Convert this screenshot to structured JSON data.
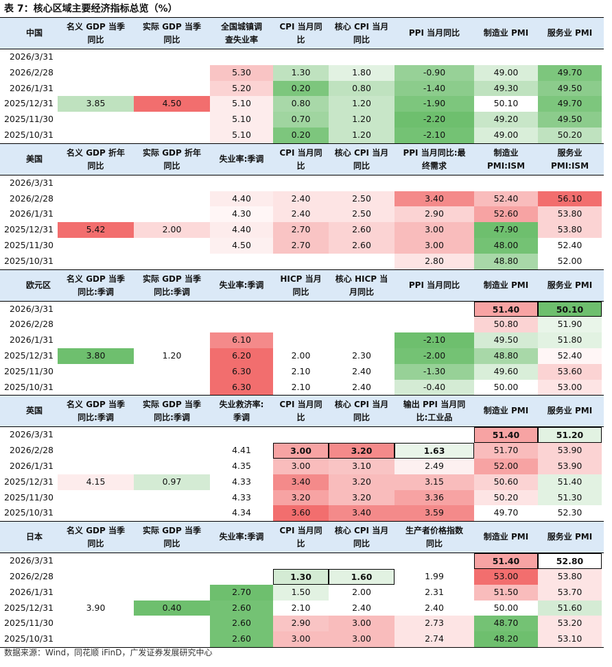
{
  "title": "表 7：核心区域主要经济指标总览（%）",
  "source": "数据来源：Wind，同花顺 iFinD，广发证券发展研究中心",
  "colors": {
    "header_bg": "#dbe9f7",
    "red_strong": "#f26e6e",
    "red_mid": "#f7a3a3",
    "red_light": "#fbd3d3",
    "red_pale": "#fdecec",
    "green_strong": "#6ebf6e",
    "green_mid": "#97d197",
    "green_light": "#bfe2bf",
    "green_pale": "#e2f2e2"
  },
  "sections": [
    {
      "region": "中国",
      "headers": [
        [
          "名义 GDP 当季",
          "同比"
        ],
        [
          "实际 GDP 当季",
          "同比"
        ],
        [
          "全国城镇调",
          "查失业率"
        ],
        [
          "CPI 当月同",
          "比"
        ],
        [
          "核心 CPI 当月",
          "同比"
        ],
        [
          "PPI 当月同比",
          ""
        ],
        [
          "制造业 PMI",
          ""
        ],
        [
          "服务业 PMI",
          ""
        ]
      ],
      "rows": [
        {
          "date": "2026/3/31",
          "values": [
            "",
            "",
            "",
            "",
            "",
            "",
            "",
            ""
          ],
          "colors": [
            "",
            "",
            "",
            "",
            "",
            "",
            "",
            ""
          ]
        },
        {
          "date": "2026/2/28",
          "values": [
            "",
            "",
            "5.30",
            "1.30",
            "1.80",
            "-0.90",
            "49.00",
            "49.70"
          ],
          "colors": [
            "",
            "",
            "#f9c4c4",
            "#bfe2bf",
            "#e2f2e2",
            "#97d197",
            "#d9eed9",
            "#7dc67d"
          ]
        },
        {
          "date": "2026/1/31",
          "values": [
            "",
            "",
            "5.20",
            "0.20",
            "0.80",
            "-1.40",
            "49.30",
            "49.50"
          ],
          "colors": [
            "",
            "",
            "#fbd3d3",
            "#7dc67d",
            "#bfe2bf",
            "#8ccc8c",
            "#bfe2bf",
            "#8ccc8c"
          ]
        },
        {
          "date": "2025/12/31",
          "values": [
            "3.85",
            "4.50",
            "5.10",
            "0.80",
            "1.20",
            "-1.90",
            "50.10",
            "49.70"
          ],
          "colors": [
            "#bfe2bf",
            "#f26e6e",
            "#fdecec",
            "#a8d8a8",
            "#c8e6c8",
            "#7dc67d",
            "#ffffff",
            "#7dc67d"
          ]
        },
        {
          "date": "2025/11/30",
          "values": [
            "",
            "",
            "5.10",
            "0.70",
            "1.20",
            "-2.20",
            "49.20",
            "49.50"
          ],
          "colors": [
            "",
            "",
            "#fdecec",
            "#a0d5a0",
            "#c8e6c8",
            "#6ebf6e",
            "#c8e6c8",
            "#8ccc8c"
          ]
        },
        {
          "date": "2025/10/31",
          "values": [
            "",
            "",
            "5.10",
            "0.20",
            "1.20",
            "-2.10",
            "49.00",
            "50.20"
          ],
          "colors": [
            "",
            "",
            "#fdecec",
            "#7dc67d",
            "#c8e6c8",
            "#74c274",
            "#d9eed9",
            "#bfe2bf"
          ]
        }
      ]
    },
    {
      "region": "美国",
      "headers": [
        [
          "名义 GDP 折年",
          "同比"
        ],
        [
          "实际 GDP 折年",
          "同比"
        ],
        [
          "失业率:季调",
          ""
        ],
        [
          "CPI 当月同",
          "比"
        ],
        [
          "核心 CPI 当月",
          "同比"
        ],
        [
          "PPI 当月同比:最",
          "终需求"
        ],
        [
          "制造业",
          "PMI:ISM"
        ],
        [
          "服务业",
          "PMI:ISM"
        ]
      ],
      "rows": [
        {
          "date": "2026/3/31",
          "values": [
            "",
            "",
            "",
            "",
            "",
            "",
            "",
            ""
          ],
          "colors": [
            "",
            "",
            "",
            "",
            "",
            "",
            "",
            ""
          ]
        },
        {
          "date": "2026/2/28",
          "values": [
            "",
            "",
            "4.40",
            "2.40",
            "2.50",
            "3.40",
            "52.40",
            "56.10"
          ],
          "colors": [
            "",
            "",
            "#fdecec",
            "#fde4e4",
            "#fde4e4",
            "#f48a8a",
            "#f9bcbc",
            "#f26e6e"
          ]
        },
        {
          "date": "2026/1/31",
          "values": [
            "",
            "",
            "4.30",
            "2.40",
            "2.50",
            "2.90",
            "52.60",
            "53.80"
          ],
          "colors": [
            "",
            "",
            "#fff6f6",
            "#fde4e4",
            "#fde4e4",
            "#fbd3d3",
            "#f7a3a3",
            "#fbd3d3"
          ]
        },
        {
          "date": "2025/12/31",
          "values": [
            "5.42",
            "2.00",
            "4.40",
            "2.70",
            "2.60",
            "3.00",
            "47.90",
            "53.80"
          ],
          "colors": [
            "#f26e6e",
            "#fcd9d9",
            "#fdecec",
            "#f9c4c4",
            "#fbd3d3",
            "#f9bcbc",
            "#6ebf6e",
            "#fbd3d3"
          ]
        },
        {
          "date": "2025/11/30",
          "values": [
            "",
            "",
            "4.50",
            "2.70",
            "2.60",
            "3.00",
            "48.00",
            "52.40"
          ],
          "colors": [
            "",
            "",
            "#fdf0f0",
            "#f9c4c4",
            "#fbd3d3",
            "#f9bcbc",
            "#74c274",
            "#ffffff"
          ]
        },
        {
          "date": "2025/10/31",
          "values": [
            "",
            "",
            "",
            "",
            "",
            "2.80",
            "48.80",
            "52.00"
          ],
          "colors": [
            "",
            "",
            "",
            "",
            "",
            "#fde4e4",
            "#a8d8a8",
            "#ffffff"
          ]
        }
      ]
    },
    {
      "region": "欧元区",
      "headers": [
        [
          "名义 GDP 当季",
          "同比:季调"
        ],
        [
          "实际 GDP 当季",
          "同比:季调"
        ],
        [
          "失业率:季调",
          ""
        ],
        [
          "HICP 当月",
          "同比"
        ],
        [
          "核心 HICP 当",
          "月同比"
        ],
        [
          "PPI 当月同比",
          ""
        ],
        [
          "制造业 PMI",
          ""
        ],
        [
          "服务业 PMI",
          ""
        ]
      ],
      "rows": [
        {
          "date": "2026/3/31",
          "values": [
            "",
            "",
            "",
            "",
            "",
            "",
            "51.40",
            "50.10"
          ],
          "colors": [
            "",
            "",
            "",
            "",
            "",
            "",
            "#f7a3a3",
            "#6ebf6e"
          ],
          "boxed": [
            6,
            7
          ]
        },
        {
          "date": "2026/2/28",
          "values": [
            "",
            "",
            "",
            "",
            "",
            "",
            "50.80",
            "51.90"
          ],
          "colors": [
            "",
            "",
            "",
            "",
            "",
            "",
            "#fbd3d3",
            "#e9f5e9"
          ]
        },
        {
          "date": "2026/1/31",
          "values": [
            "",
            "",
            "6.10",
            "",
            "",
            "-2.10",
            "49.50",
            "51.80"
          ],
          "colors": [
            "",
            "",
            "#f48a8a",
            "",
            "",
            "#6ebf6e",
            "#d4ebd4",
            "#e2f2e2"
          ]
        },
        {
          "date": "2025/12/31",
          "values": [
            "3.80",
            "1.20",
            "6.20",
            "2.00",
            "2.30",
            "-2.00",
            "48.80",
            "52.40"
          ],
          "colors": [
            "#6ebf6e",
            "#ffffff",
            "#f26e6e",
            "#ffffff",
            "#ffffff",
            "#74c274",
            "#a8d8a8",
            "#fff6f6"
          ]
        },
        {
          "date": "2025/11/30",
          "values": [
            "",
            "",
            "6.30",
            "2.10",
            "2.40",
            "-1.30",
            "49.60",
            "53.60"
          ],
          "colors": [
            "",
            "",
            "#f26e6e",
            "#ffffff",
            "#ffffff",
            "#97d197",
            "#d9eed9",
            "#fbd3d3"
          ]
        },
        {
          "date": "2025/10/31",
          "values": [
            "",
            "",
            "6.30",
            "2.10",
            "2.40",
            "-0.40",
            "50.00",
            "53.00"
          ],
          "colors": [
            "",
            "",
            "#f26e6e",
            "#ffffff",
            "#ffffff",
            "#d4ebd4",
            "#ffffff",
            "#fde4e4"
          ]
        }
      ]
    },
    {
      "region": "英国",
      "headers": [
        [
          "名义 GDP 当季",
          "同比:季调"
        ],
        [
          "实际 GDP 当季",
          "同比:季调"
        ],
        [
          "失业救济率:",
          "季调"
        ],
        [
          "CPI 当月同",
          "比"
        ],
        [
          "核心 CPI 当月",
          "同比"
        ],
        [
          "输出 PPI 当月同",
          "比:工业品"
        ],
        [
          "制造业 PMI",
          ""
        ],
        [
          "服务业 PMI",
          ""
        ]
      ],
      "rows": [
        {
          "date": "2026/3/31",
          "values": [
            "",
            "",
            "",
            "",
            "",
            "",
            "51.40",
            "51.20"
          ],
          "colors": [
            "",
            "",
            "",
            "",
            "",
            "",
            "#f7a3a3",
            "#e2f2e2"
          ],
          "boxed": [
            6,
            7
          ]
        },
        {
          "date": "2026/2/28",
          "values": [
            "",
            "",
            "4.41",
            "3.00",
            "3.20",
            "1.63",
            "51.70",
            "53.90"
          ],
          "colors": [
            "",
            "",
            "#ffffff",
            "#f7a3a3",
            "#f48a8a",
            "#e9f5e9",
            "#f9bcbc",
            "#fbd3d3"
          ],
          "boxed": [
            3,
            4,
            5
          ]
        },
        {
          "date": "2026/1/31",
          "values": [
            "",
            "",
            "4.35",
            "3.00",
            "3.10",
            "2.49",
            "52.00",
            "53.90"
          ],
          "colors": [
            "",
            "",
            "#ffffff",
            "#f9bcbc",
            "#f9c4c4",
            "#fdf0f0",
            "#f7a3a3",
            "#fbd3d3"
          ]
        },
        {
          "date": "2025/12/31",
          "values": [
            "4.15",
            "0.97",
            "4.33",
            "3.40",
            "3.20",
            "3.15",
            "50.60",
            "51.40"
          ],
          "colors": [
            "#fdecec",
            "#d4ebd4",
            "#ffffff",
            "#f48a8a",
            "#f9bcbc",
            "#f9bcbc",
            "#fbd3d3",
            "#e2f2e2"
          ]
        },
        {
          "date": "2025/11/30",
          "values": [
            "",
            "",
            "4.33",
            "3.20",
            "3.20",
            "3.36",
            "50.20",
            "51.30"
          ],
          "colors": [
            "",
            "",
            "#ffffff",
            "#f7a3a3",
            "#f9bcbc",
            "#f7a3a3",
            "#fde4e4",
            "#e2f2e2"
          ]
        },
        {
          "date": "2025/10/31",
          "values": [
            "",
            "",
            "4.34",
            "3.60",
            "3.40",
            "3.59",
            "49.70",
            "52.30"
          ],
          "colors": [
            "",
            "",
            "#ffffff",
            "#f26e6e",
            "#f48a8a",
            "#f48a8a",
            "#ffffff",
            "#ffffff"
          ]
        }
      ]
    },
    {
      "region": "日本",
      "headers": [
        [
          "名义 GDP 当季",
          "同比"
        ],
        [
          "实际 GDP 当季",
          "同比"
        ],
        [
          "失业率:季调",
          ""
        ],
        [
          "CPI 当月同",
          "比"
        ],
        [
          "核心 CPI 当月",
          "同比"
        ],
        [
          "生产者价格指数",
          "同比"
        ],
        [
          "制造业 PMI",
          ""
        ],
        [
          "服务业 PMI",
          ""
        ]
      ],
      "rows": [
        {
          "date": "2026/3/31",
          "values": [
            "",
            "",
            "",
            "",
            "",
            "",
            "51.40",
            "52.80"
          ],
          "colors": [
            "",
            "",
            "",
            "",
            "",
            "",
            "#f7a3a3",
            "#ffffff"
          ],
          "boxed": [
            6,
            7
          ]
        },
        {
          "date": "2026/2/28",
          "values": [
            "",
            "",
            "",
            "1.30",
            "1.60",
            "1.99",
            "53.00",
            "53.80"
          ],
          "colors": [
            "",
            "",
            "",
            "#d4ebd4",
            "#e2f2e2",
            "#ffffff",
            "#f26e6e",
            "#fde4e4"
          ],
          "boxed": [
            3,
            4
          ]
        },
        {
          "date": "2026/1/31",
          "values": [
            "",
            "",
            "2.70",
            "1.50",
            "2.00",
            "2.31",
            "51.50",
            "53.70"
          ],
          "colors": [
            "",
            "",
            "#6ebf6e",
            "#e2f2e2",
            "#ffffff",
            "#ffffff",
            "#f9bcbc",
            "#fde4e4"
          ]
        },
        {
          "date": "2025/12/31",
          "values": [
            "3.90",
            "0.40",
            "2.60",
            "2.10",
            "2.40",
            "2.40",
            "50.00",
            "51.60"
          ],
          "colors": [
            "#ffffff",
            "#6ebf6e",
            "#74c274",
            "#ffffff",
            "#ffffff",
            "#ffffff",
            "#ffffff",
            "#d4ebd4"
          ]
        },
        {
          "date": "2025/11/30",
          "values": [
            "",
            "",
            "2.60",
            "2.90",
            "3.00",
            "2.73",
            "48.70",
            "53.20"
          ],
          "colors": [
            "",
            "",
            "#74c274",
            "#f9c4c4",
            "#f9bcbc",
            "#fde4e4",
            "#74c274",
            "#fde4e4"
          ]
        },
        {
          "date": "2025/10/31",
          "values": [
            "",
            "",
            "2.60",
            "3.00",
            "3.00",
            "2.74",
            "48.20",
            "53.10"
          ],
          "colors": [
            "",
            "",
            "#74c274",
            "#f9bcbc",
            "#f9bcbc",
            "#fde4e4",
            "#6ebf6e",
            "#fde4e4"
          ]
        }
      ]
    }
  ]
}
